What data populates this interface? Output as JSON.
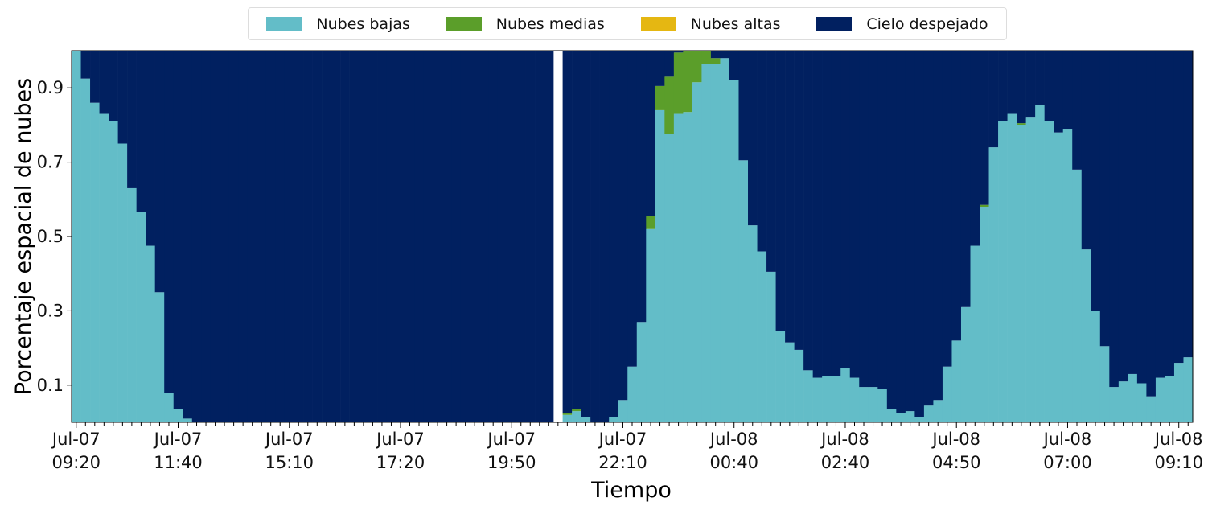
{
  "chart_data": {
    "type": "stacked_bar",
    "x_label": "Tiempo",
    "y_label": "Porcentaje espacial de nubes",
    "categories": [
      "Jul-07\n09:20",
      null,
      null,
      null,
      null,
      null,
      null,
      null,
      null,
      null,
      null,
      "Jul-07\n11:40",
      null,
      null,
      null,
      null,
      null,
      null,
      null,
      null,
      null,
      null,
      null,
      "Jul-07\n15:10",
      null,
      null,
      null,
      null,
      null,
      null,
      null,
      null,
      null,
      null,
      null,
      "Jul-07\n17:20",
      null,
      null,
      null,
      null,
      null,
      null,
      null,
      null,
      null,
      null,
      null,
      "Jul-07\n19:50",
      null,
      null,
      null,
      null,
      null,
      null,
      null,
      null,
      null,
      null,
      null,
      "Jul-07\n22:10",
      null,
      null,
      null,
      null,
      null,
      null,
      null,
      null,
      null,
      null,
      null,
      "Jul-08\n00:40",
      null,
      null,
      null,
      null,
      null,
      null,
      null,
      null,
      null,
      null,
      null,
      "Jul-08\n02:40",
      null,
      null,
      null,
      null,
      null,
      null,
      null,
      null,
      null,
      null,
      null,
      "Jul-08\n04:50",
      null,
      null,
      null,
      null,
      null,
      null,
      null,
      null,
      null,
      null,
      null,
      "Jul-08\n07:00",
      null,
      null,
      null,
      null,
      null,
      null,
      null,
      null,
      null,
      null,
      null,
      "Jul-08\n09:10",
      null
    ],
    "series": [
      {
        "name": "Nubes bajas",
        "color": "#63bdc8",
        "values": [
          1.0,
          0.925,
          0.86,
          0.83,
          0.81,
          0.75,
          0.63,
          0.565,
          0.475,
          0.35,
          0.08,
          0.035,
          0.01,
          0,
          0,
          0,
          0,
          0,
          0,
          0,
          0,
          0,
          0,
          0,
          0,
          0,
          0,
          0,
          0,
          0,
          0,
          0,
          0,
          0,
          0,
          0,
          0,
          0,
          0,
          0,
          0,
          0,
          0,
          0,
          0,
          0,
          0,
          0,
          0,
          0,
          0,
          0,
          null,
          0.02,
          0.03,
          0.015,
          0,
          0,
          0.015,
          0.06,
          0.15,
          0.27,
          0.52,
          0.84,
          0.775,
          0.83,
          0.835,
          0.915,
          0.965,
          0.965,
          0.98,
          0.92,
          0.705,
          0.53,
          0.46,
          0.405,
          0.245,
          0.215,
          0.195,
          0.14,
          0.12,
          0.125,
          0.125,
          0.145,
          0.12,
          0.095,
          0.095,
          0.09,
          0.035,
          0.025,
          0.03,
          0.015,
          0.045,
          0.06,
          0.15,
          0.22,
          0.31,
          0.475,
          0.58,
          0.74,
          0.81,
          0.83,
          0.8,
          0.82,
          0.855,
          0.81,
          0.78,
          0.79,
          0.68,
          0.465,
          0.3,
          0.205,
          0.095,
          0.11,
          0.13,
          0.105,
          0.07,
          0.12,
          0.125,
          0.16,
          0.175
        ]
      },
      {
        "name": "Nubes medias",
        "color": "#5b9e2a",
        "values": [
          0,
          0,
          0,
          0,
          0,
          0,
          0,
          0,
          0,
          0,
          0,
          0,
          0,
          0,
          0,
          0,
          0,
          0,
          0,
          0,
          0,
          0,
          0,
          0,
          0,
          0,
          0,
          0,
          0,
          0,
          0,
          0,
          0,
          0,
          0,
          0,
          0,
          0,
          0,
          0,
          0,
          0,
          0,
          0,
          0,
          0,
          0,
          0,
          0,
          0,
          0,
          0,
          null,
          0.005,
          0.005,
          0,
          0,
          0,
          0,
          0,
          0,
          0,
          0.035,
          0.065,
          0.155,
          0.165,
          0.165,
          0.085,
          0.035,
          0.015,
          0,
          0,
          0,
          0,
          0,
          0,
          0,
          0,
          0,
          0,
          0,
          0,
          0,
          0,
          0,
          0,
          0,
          0,
          0,
          0,
          0,
          0,
          0,
          0,
          0,
          0,
          0,
          0,
          0.005,
          0,
          0,
          0,
          0.005,
          0,
          0,
          0,
          0,
          0,
          0,
          0,
          0,
          0,
          0,
          0,
          0,
          0,
          0,
          0,
          0,
          0,
          0
        ]
      },
      {
        "name": "Nubes altas",
        "color": "#e5b712",
        "values": [
          0,
          0,
          0,
          0,
          0,
          0,
          0,
          0,
          0,
          0,
          0,
          0,
          0,
          0,
          0,
          0,
          0,
          0,
          0,
          0,
          0,
          0,
          0,
          0,
          0,
          0,
          0,
          0,
          0,
          0,
          0,
          0,
          0,
          0,
          0,
          0,
          0,
          0,
          0,
          0,
          0,
          0,
          0,
          0,
          0,
          0,
          0,
          0,
          0,
          0,
          0,
          0,
          null,
          0,
          0,
          0,
          0,
          0,
          0,
          0,
          0,
          0,
          0,
          0,
          0,
          0,
          0,
          0,
          0,
          0,
          0,
          0,
          0,
          0,
          0,
          0,
          0,
          0,
          0,
          0,
          0,
          0,
          0,
          0,
          0,
          0,
          0,
          0,
          0,
          0,
          0,
          0,
          0,
          0,
          0,
          0,
          0,
          0,
          0,
          0,
          0,
          0,
          0,
          0,
          0,
          0,
          0,
          0,
          0,
          0,
          0,
          0,
          0,
          0,
          0,
          0,
          0,
          0,
          0,
          0,
          0
        ]
      },
      {
        "name": "Cielo despejado",
        "color": "#012060",
        "values": [
          0,
          0.075,
          0.14,
          0.17,
          0.19,
          0.25,
          0.37,
          0.435,
          0.525,
          0.65,
          0.92,
          0.965,
          0.99,
          1,
          1,
          1,
          1,
          1,
          1,
          1,
          1,
          1,
          1,
          1,
          1,
          1,
          1,
          1,
          1,
          1,
          1,
          1,
          1,
          1,
          1,
          1,
          1,
          1,
          1,
          1,
          1,
          1,
          1,
          1,
          1,
          1,
          1,
          1,
          1,
          1,
          1,
          1,
          null,
          0.975,
          0.965,
          0.985,
          1,
          1,
          0.985,
          0.94,
          0.85,
          0.73,
          0.445,
          0.095,
          0.07,
          0.005,
          0,
          0,
          0,
          0.02,
          0.02,
          0.08,
          0.295,
          0.47,
          0.54,
          0.595,
          0.755,
          0.785,
          0.805,
          0.86,
          0.88,
          0.875,
          0.875,
          0.855,
          0.88,
          0.905,
          0.905,
          0.91,
          0.965,
          0.975,
          0.97,
          0.985,
          0.955,
          0.94,
          0.85,
          0.78,
          0.69,
          0.525,
          0.415,
          0.26,
          0.19,
          0.17,
          0.195,
          0.18,
          0.145,
          0.19,
          0.22,
          0.21,
          0.32,
          0.535,
          0.7,
          0.795,
          0.905,
          0.89,
          0.87,
          0.895,
          0.93,
          0.88,
          0.875,
          0.84,
          0.825
        ]
      }
    ],
    "ylim": [
      0,
      1
    ],
    "yticks": [
      0.1,
      0.3,
      0.5,
      0.7,
      0.9
    ],
    "grid": false,
    "legend": "top"
  }
}
